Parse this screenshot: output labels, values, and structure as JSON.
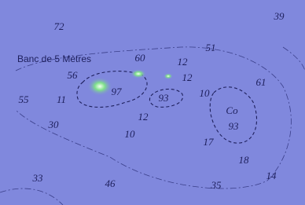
{
  "title": "Banc de 5 Mètres",
  "soundings": [
    "72",
    "39",
    "51",
    "60",
    "12",
    "56",
    "12",
    "61",
    "55",
    "11",
    "97",
    "93",
    "10",
    "Co",
    "93",
    "30",
    "12",
    "10",
    "17",
    "18",
    "33",
    "46",
    "35",
    "14"
  ]
}
